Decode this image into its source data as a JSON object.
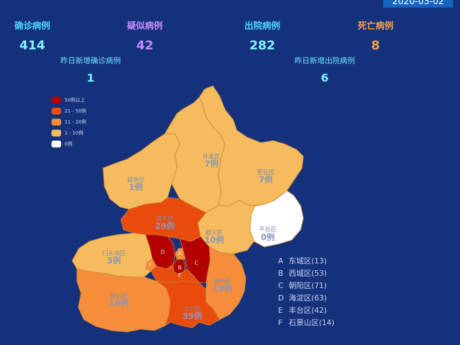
{
  "date": "2020-03-02",
  "stats": {
    "confirmed": {
      "label": "确诊病例",
      "value": "414"
    },
    "suspected": {
      "label": "疑似病例",
      "value": "42"
    },
    "discharged": {
      "label": "出院病例",
      "value": "282"
    },
    "deaths": {
      "label": "死亡病例",
      "value": "8"
    },
    "new_confirmed": {
      "label": "昨日新增确诊病例",
      "value": "1"
    },
    "new_discharged": {
      "label": "昨日新增出院病例",
      "value": "6"
    }
  },
  "legend": [
    {
      "label": "50例以上",
      "color": "#b30000"
    },
    {
      "label": "21 - 50例",
      "color": "#e84b0c"
    },
    {
      "label": "11 - 20例",
      "color": "#f58d3a"
    },
    {
      "label": "1 - 10例",
      "color": "#f6bb5c"
    },
    {
      "label": "0例",
      "color": "#ffffff"
    }
  ],
  "districts": {
    "huairou": {
      "name": "怀柔区",
      "count": "7例"
    },
    "miyun": {
      "name": "密云区",
      "count": "7例"
    },
    "yanqing": {
      "name": "延庆区",
      "count": "1例"
    },
    "changping": {
      "name": "昌平区",
      "count": "29例"
    },
    "shunyi": {
      "name": "顺义区",
      "count": "10例"
    },
    "pinggu": {
      "name": "平谷区",
      "count": "0例"
    },
    "mentougou": {
      "name": "门头沟区",
      "count": "3例"
    },
    "tongzhou": {
      "name": "通州区",
      "count": "19例"
    },
    "fangshan": {
      "name": "房山区",
      "count": "16例"
    },
    "daxing": {
      "name": "大兴区",
      "count": "39例"
    }
  },
  "inner_letters": {
    "a": "A",
    "b": "B",
    "c": "C",
    "d": "D",
    "e": "E",
    "f": "F"
  },
  "inner_list": [
    {
      "key": "A",
      "text": "东城区(13)"
    },
    {
      "key": "B",
      "text": "西城区(53)"
    },
    {
      "key": "C",
      "text": "朝阳区(71)"
    },
    {
      "key": "D",
      "text": "海淀区(63)"
    },
    {
      "key": "E",
      "text": "丰台区(42)"
    },
    {
      "key": "F",
      "text": "石景山区(14)"
    }
  ]
}
